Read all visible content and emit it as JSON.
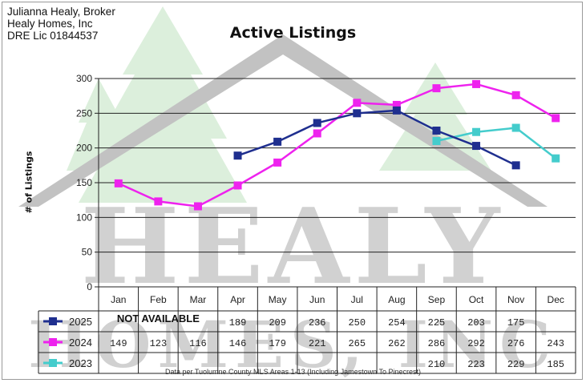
{
  "header": {
    "broker_name": "Julianna Healy, Broker",
    "company": "Healy Homes, Inc",
    "license": "DRE Lic 01844537"
  },
  "watermark": {
    "line1": "HEALY",
    "line2": "HOMES, INC",
    "colors": {
      "roof": "#b8b8b8",
      "trees": "#d8ecd8",
      "letters": "#c9c9c9"
    }
  },
  "chart_data": {
    "type": "line",
    "title": "Active Listings",
    "xlabel": "",
    "ylabel": "# of Listings",
    "ylim": [
      0,
      300
    ],
    "yticks": [
      0,
      50,
      100,
      150,
      200,
      250,
      300
    ],
    "grid": true,
    "categories": [
      "Jan",
      "Feb",
      "Mar",
      "Apr",
      "May",
      "Jun",
      "Jul",
      "Aug",
      "Sep",
      "Oct",
      "Nov",
      "Dec"
    ],
    "series": [
      {
        "name": "2025",
        "color": "#1f2f8f",
        "values": [
          null,
          null,
          null,
          189,
          209,
          236,
          250,
          254,
          225,
          203,
          175,
          null
        ],
        "table_note": "NOT AVAILABLE"
      },
      {
        "name": "2024",
        "color": "#ee22ee",
        "values": [
          149,
          123,
          116,
          146,
          179,
          221,
          265,
          262,
          286,
          292,
          276,
          243
        ]
      },
      {
        "name": "2023",
        "color": "#44cccc",
        "values": [
          null,
          null,
          null,
          null,
          null,
          null,
          null,
          null,
          210,
          223,
          229,
          185
        ]
      }
    ],
    "footnote": "Data per Tuolumne County MLS Areas 1-13 (Including Jamestown To Pinecrest)"
  }
}
